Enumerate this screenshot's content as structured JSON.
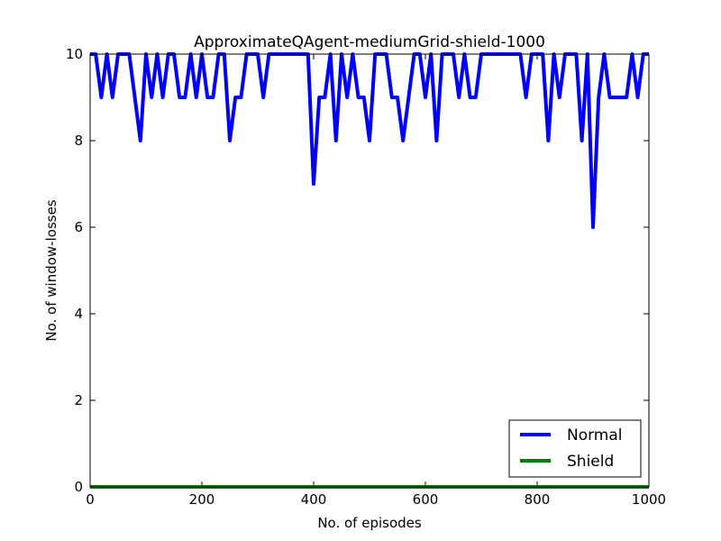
{
  "chart_data": {
    "type": "line",
    "title": "ApproximateQAgent-mediumGrid-shield-1000",
    "xlabel": "No. of episodes",
    "ylabel": "No. of window-losses",
    "xlim": [
      0,
      1000
    ],
    "ylim": [
      0,
      10
    ],
    "xticks": [
      0,
      200,
      400,
      600,
      800,
      1000
    ],
    "yticks": [
      0,
      2,
      4,
      6,
      8,
      10
    ],
    "grid": false,
    "legend_position": "lower-right",
    "series": [
      {
        "name": "Normal",
        "color": "#0000ff",
        "x": [
          0,
          10,
          20,
          30,
          40,
          50,
          60,
          70,
          80,
          90,
          100,
          110,
          120,
          130,
          140,
          150,
          160,
          170,
          180,
          190,
          200,
          210,
          220,
          230,
          240,
          250,
          260,
          270,
          280,
          290,
          300,
          310,
          320,
          330,
          340,
          350,
          360,
          370,
          380,
          390,
          400,
          410,
          420,
          430,
          440,
          450,
          460,
          470,
          480,
          490,
          500,
          510,
          520,
          530,
          540,
          550,
          560,
          570,
          580,
          590,
          600,
          610,
          620,
          630,
          640,
          650,
          660,
          670,
          680,
          690,
          700,
          710,
          720,
          730,
          740,
          750,
          760,
          770,
          780,
          790,
          800,
          810,
          820,
          830,
          840,
          850,
          860,
          870,
          880,
          890,
          900,
          910,
          920,
          930,
          940,
          950,
          960,
          970,
          980,
          990,
          1000
        ],
        "values": [
          10,
          10,
          9,
          10,
          9,
          10,
          10,
          10,
          9,
          8,
          10,
          9,
          10,
          9,
          10,
          10,
          9,
          9,
          10,
          9,
          10,
          9,
          9,
          10,
          10,
          8,
          9,
          9,
          10,
          10,
          10,
          9,
          10,
          10,
          10,
          10,
          10,
          10,
          10,
          10,
          7,
          9,
          9,
          10,
          8,
          10,
          9,
          10,
          9,
          9,
          8,
          10,
          10,
          10,
          9,
          9,
          8,
          9,
          10,
          10,
          9,
          10,
          8,
          10,
          10,
          10,
          9,
          10,
          9,
          9,
          10,
          10,
          10,
          10,
          10,
          10,
          10,
          10,
          9,
          10,
          10,
          10,
          8,
          10,
          9,
          10,
          10,
          10,
          8,
          10,
          6,
          9,
          10,
          9,
          9,
          9,
          9,
          10,
          9,
          10,
          10
        ]
      },
      {
        "name": "Shield",
        "color": "#008000",
        "x": [
          0,
          1000
        ],
        "values": [
          0,
          0
        ]
      }
    ]
  }
}
